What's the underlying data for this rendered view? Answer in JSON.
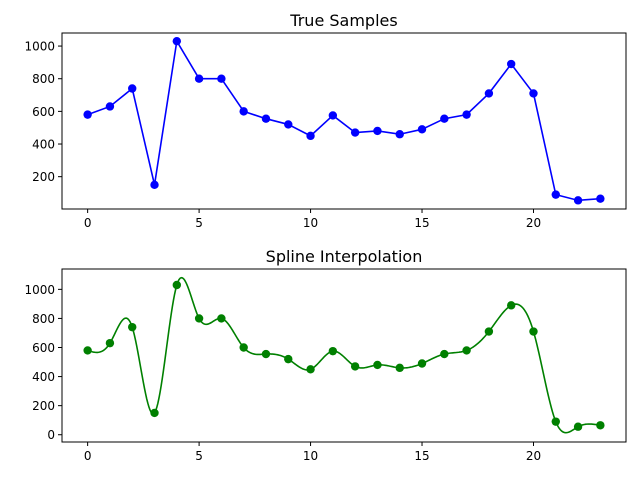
{
  "chart_data": [
    {
      "type": "line",
      "title": "True Samples",
      "xlabel": "",
      "ylabel": "",
      "xlim": [
        -1.15,
        24.15
      ],
      "ylim": [
        2,
        1080
      ],
      "xticks": [
        0,
        5,
        10,
        15,
        20
      ],
      "yticks": [
        200,
        400,
        600,
        800,
        1000
      ],
      "grid": false,
      "color": "#0000ff",
      "marker": "circle",
      "series": [
        {
          "x": [
            0,
            1,
            2,
            3,
            4,
            5,
            6,
            7,
            8,
            9,
            10,
            11,
            12,
            13,
            14,
            15,
            16,
            17,
            18,
            19,
            20,
            21,
            22,
            23
          ],
          "y": [
            580,
            630,
            740,
            150,
            1030,
            800,
            800,
            600,
            555,
            520,
            450,
            575,
            470,
            480,
            460,
            490,
            555,
            580,
            710,
            890,
            710,
            90,
            55,
            65
          ]
        }
      ]
    },
    {
      "type": "line",
      "title": "Spline Interpolation",
      "xlabel": "",
      "ylabel": "",
      "xlim": [
        -1.15,
        24.15
      ],
      "ylim": [
        -50,
        1140
      ],
      "xticks": [
        0,
        5,
        10,
        15,
        20
      ],
      "yticks": [
        0,
        200,
        400,
        600,
        800,
        1000
      ],
      "grid": false,
      "color": "#008000",
      "marker": "circle",
      "series": [
        {
          "x": [
            0,
            1,
            2,
            3,
            4,
            5,
            6,
            7,
            8,
            9,
            10,
            11,
            12,
            13,
            14,
            15,
            16,
            17,
            18,
            19,
            20,
            21,
            22,
            23
          ],
          "y": [
            580,
            630,
            740,
            150,
            1030,
            800,
            800,
            600,
            555,
            520,
            450,
            575,
            470,
            480,
            460,
            490,
            555,
            580,
            710,
            890,
            710,
            90,
            55,
            65
          ]
        }
      ]
    }
  ]
}
